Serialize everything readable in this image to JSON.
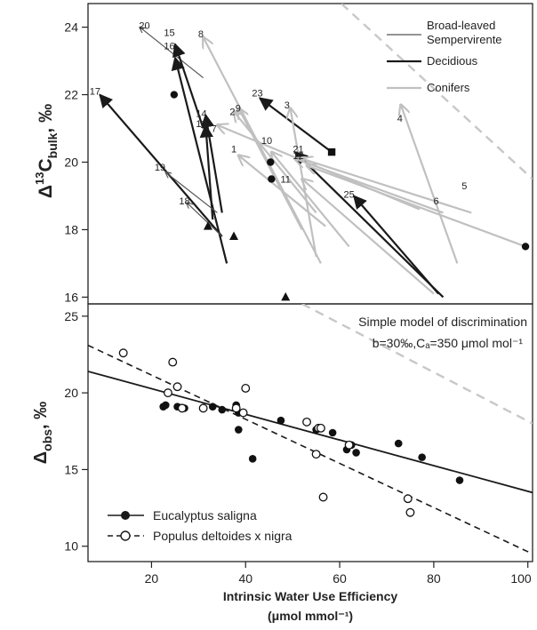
{
  "colors": {
    "deciduous": "#1a1a1a",
    "evergreen": "#555555",
    "conifer": "#c0c0c0",
    "model": "#c8c8c8",
    "text": "#222222"
  },
  "x_axis": {
    "label_line1": "Intrinsic Water Use Efficiency",
    "label_line2": "(μmol mmol⁻¹)",
    "ticks": [
      20,
      40,
      60,
      80,
      100
    ],
    "range": [
      6.5,
      101
    ]
  },
  "legend_top": {
    "entries": [
      {
        "label": "Broad-leaved",
        "type": "evergreen"
      },
      {
        "label": "Sempervirente",
        "type": "none"
      },
      {
        "label": "Decidious",
        "type": "deciduous"
      },
      {
        "label": "Conifers",
        "type": "conifer"
      }
    ]
  },
  "legend_bottom": {
    "entries": [
      {
        "label": "Eucalyptus saligna",
        "marker": "filled"
      },
      {
        "label": "Populus deltoides x nigra",
        "marker": "open"
      }
    ]
  },
  "annotation": {
    "line1": "Simple model of discrimination",
    "line2": "b=30‰,Cₐ=350 μmol mol⁻¹"
  },
  "chart_data": [
    {
      "type": "line",
      "ylabel": "Δ 13C bulk, ‰",
      "ylabel_parts": {
        "delta": "Δ",
        "sup": "13",
        "main": "C",
        "sub": "bulk",
        "unit": ", ‰"
      },
      "ylim": [
        15.8,
        24.7
      ],
      "yticks": [
        16,
        18,
        20,
        22,
        24
      ],
      "model_line": [
        [
          58,
          25
        ],
        [
          101,
          19.5
        ]
      ],
      "arrows": [
        {
          "label": "20",
          "type": "evergreen",
          "x1": 31,
          "y1": 22.5,
          "x2": 17.5,
          "y2": 24.0,
          "lx": 18.5,
          "ly": 24.05
        },
        {
          "label": "15",
          "type": "deciduous",
          "x1": 31,
          "y1": 21.0,
          "x2": 25.0,
          "y2": 23.5,
          "lx": 23.8,
          "ly": 23.85
        },
        {
          "label": "16",
          "type": "deciduous",
          "x1": 36,
          "y1": 17.0,
          "x2": 25.0,
          "y2": 23.1,
          "lx": 23.8,
          "ly": 23.45
        },
        {
          "label": "8",
          "type": "conifer",
          "x1": 56,
          "y1": 17.0,
          "x2": 31.0,
          "y2": 23.7,
          "lx": 30.5,
          "ly": 23.8
        },
        {
          "label": "17",
          "type": "deciduous",
          "x1": 35,
          "y1": 17.8,
          "x2": 9.0,
          "y2": 22.0,
          "lx": 8.0,
          "ly": 22.1
        },
        {
          "label": "23",
          "type": "deciduous",
          "x1": 58.3,
          "y1": 20.3,
          "x2": 43.0,
          "y2": 21.9,
          "lx": 42.5,
          "ly": 22.05
        },
        {
          "label": "3",
          "type": "conifer",
          "x1": 55,
          "y1": 17.2,
          "x2": 49.5,
          "y2": 21.6,
          "lx": 48.8,
          "ly": 21.7
        },
        {
          "label": "14",
          "type": "deciduous",
          "x1": 35,
          "y1": 18.5,
          "x2": 31.5,
          "y2": 21.4,
          "lx": 30.6,
          "ly": 21.45
        },
        {
          "label": "13",
          "type": "deciduous",
          "x1": 33,
          "y1": 18.3,
          "x2": 31.5,
          "y2": 21.1,
          "lx": 30.6,
          "ly": 21.15
        },
        {
          "label": "2",
          "type": "conifer",
          "x1": 55,
          "y1": 18.5,
          "x2": 37.5,
          "y2": 21.5,
          "lx": 37.2,
          "ly": 21.5
        },
        {
          "label": "9",
          "type": "conifer",
          "x1": 52,
          "y1": 18.0,
          "x2": 38.5,
          "y2": 21.6,
          "lx": 38.4,
          "ly": 21.6
        },
        {
          "label": "7",
          "type": "conifer",
          "x1": 77,
          "y1": 18.6,
          "x2": 34.0,
          "y2": 21.1,
          "lx": 33.3,
          "ly": 21.0
        },
        {
          "label": "4",
          "type": "conifer",
          "x1": 85,
          "y1": 17.0,
          "x2": 73.0,
          "y2": 21.7,
          "lx": 72.8,
          "ly": 21.3
        },
        {
          "label": "10",
          "type": "conifer",
          "x1": 62,
          "y1": 17.5,
          "x2": 45.5,
          "y2": 20.3,
          "lx": 44.5,
          "ly": 20.65
        },
        {
          "label": "21",
          "type": "deciduous",
          "x1": 82,
          "y1": 16.0,
          "x2": 50.5,
          "y2": 20.3,
          "lx": 51.2,
          "ly": 20.4
        },
        {
          "label": "12",
          "type": "conifer",
          "x1": 82,
          "y1": 18.5,
          "x2": 50.5,
          "y2": 20.1,
          "lx": 51.2,
          "ly": 20.2
        },
        {
          "label": "1",
          "type": "conifer",
          "x1": 57,
          "y1": 18.1,
          "x2": 38.5,
          "y2": 20.2,
          "lx": 37.5,
          "ly": 20.4
        },
        {
          "label": "19",
          "type": "evergreen",
          "x1": 34,
          "y1": 18.5,
          "x2": 23.0,
          "y2": 19.7,
          "lx": 21.8,
          "ly": 19.85
        },
        {
          "label": "18",
          "type": "evergreen",
          "x1": 35,
          "y1": 17.8,
          "x2": 27.5,
          "y2": 18.8,
          "lx": 27.0,
          "ly": 18.85
        },
        {
          "label": "25",
          "type": "deciduous",
          "x1": 81,
          "y1": 16.1,
          "x2": 63.0,
          "y2": 19.0,
          "lx": 62.0,
          "ly": 19.05
        },
        {
          "label": "5",
          "type": "conifer",
          "x1": 88,
          "y1": 18.5,
          "x2": 52.0,
          "y2": 20.1,
          "lx": 86.5,
          "ly": 19.3
        },
        {
          "label": "6",
          "type": "conifer",
          "x1": 99.5,
          "y1": 17.5,
          "x2": 53.0,
          "y2": 19.9,
          "lx": 80.5,
          "ly": 18.85
        },
        {
          "label": "11",
          "type": "conifer",
          "x1": 80,
          "y1": 16.1,
          "x2": 52.0,
          "y2": 19.5,
          "lx": 48.5,
          "ly": 19.5
        }
      ],
      "markers": [
        {
          "shape": "circle",
          "x": 24.8,
          "y": 22.0
        },
        {
          "shape": "circle",
          "x": 45.3,
          "y": 20.0
        },
        {
          "shape": "circle",
          "x": 45.5,
          "y": 19.5
        },
        {
          "shape": "circle",
          "x": 99.5,
          "y": 17.5
        },
        {
          "shape": "square",
          "x": 58.3,
          "y": 20.3
        },
        {
          "shape": "triangle",
          "x": 32.0,
          "y": 18.1
        },
        {
          "shape": "triangle",
          "x": 37.5,
          "y": 17.8
        },
        {
          "shape": "triangle",
          "x": 48.5,
          "y": 16.0
        }
      ]
    },
    {
      "type": "scatter",
      "ylabel": "Δobs, ‰",
      "ylabel_parts": {
        "delta": "Δ",
        "sub": "obs",
        "unit": ", ‰"
      },
      "ylim": [
        9.0,
        25.8
      ],
      "yticks": [
        10,
        15,
        20,
        25
      ],
      "model_line": [
        [
          52,
          25.8
        ],
        [
          101,
          18.0
        ]
      ],
      "solid_fit": [
        [
          6.5,
          21.4
        ],
        [
          101,
          13.5
        ]
      ],
      "dashed_fit": [
        [
          6.5,
          23.1
        ],
        [
          101,
          9.5
        ]
      ],
      "series": [
        {
          "name": "Eucalyptus saligna",
          "marker": "filled",
          "points": [
            [
              22.5,
              19.1
            ],
            [
              23,
              19.2
            ],
            [
              25.5,
              19.1
            ],
            [
              27,
              19.0
            ],
            [
              33,
              19.1
            ],
            [
              35,
              18.9
            ],
            [
              38,
              19.2
            ],
            [
              38.5,
              18.7
            ],
            [
              38.5,
              17.6
            ],
            [
              41.5,
              15.7
            ],
            [
              47.5,
              18.2
            ],
            [
              55,
              17.6
            ],
            [
              58.5,
              17.4
            ],
            [
              61.5,
              16.3
            ],
            [
              62.5,
              16.6
            ],
            [
              63.5,
              16.1
            ],
            [
              72.5,
              16.7
            ],
            [
              77.5,
              15.8
            ],
            [
              85.5,
              14.3
            ]
          ]
        },
        {
          "name": "Populus deltoides x nigra",
          "marker": "open",
          "points": [
            [
              14,
              22.6
            ],
            [
              23.5,
              20.0
            ],
            [
              24.5,
              22.0
            ],
            [
              25.5,
              20.4
            ],
            [
              26.5,
              19.0
            ],
            [
              31,
              19.0
            ],
            [
              38,
              19.0
            ],
            [
              39.5,
              18.7
            ],
            [
              40,
              20.3
            ],
            [
              53,
              18.1
            ],
            [
              55,
              16.0
            ],
            [
              55.5,
              17.7
            ],
            [
              56,
              17.7
            ],
            [
              56.5,
              13.2
            ],
            [
              62,
              16.6
            ],
            [
              74.5,
              13.1
            ],
            [
              75,
              12.2
            ]
          ]
        }
      ]
    }
  ]
}
